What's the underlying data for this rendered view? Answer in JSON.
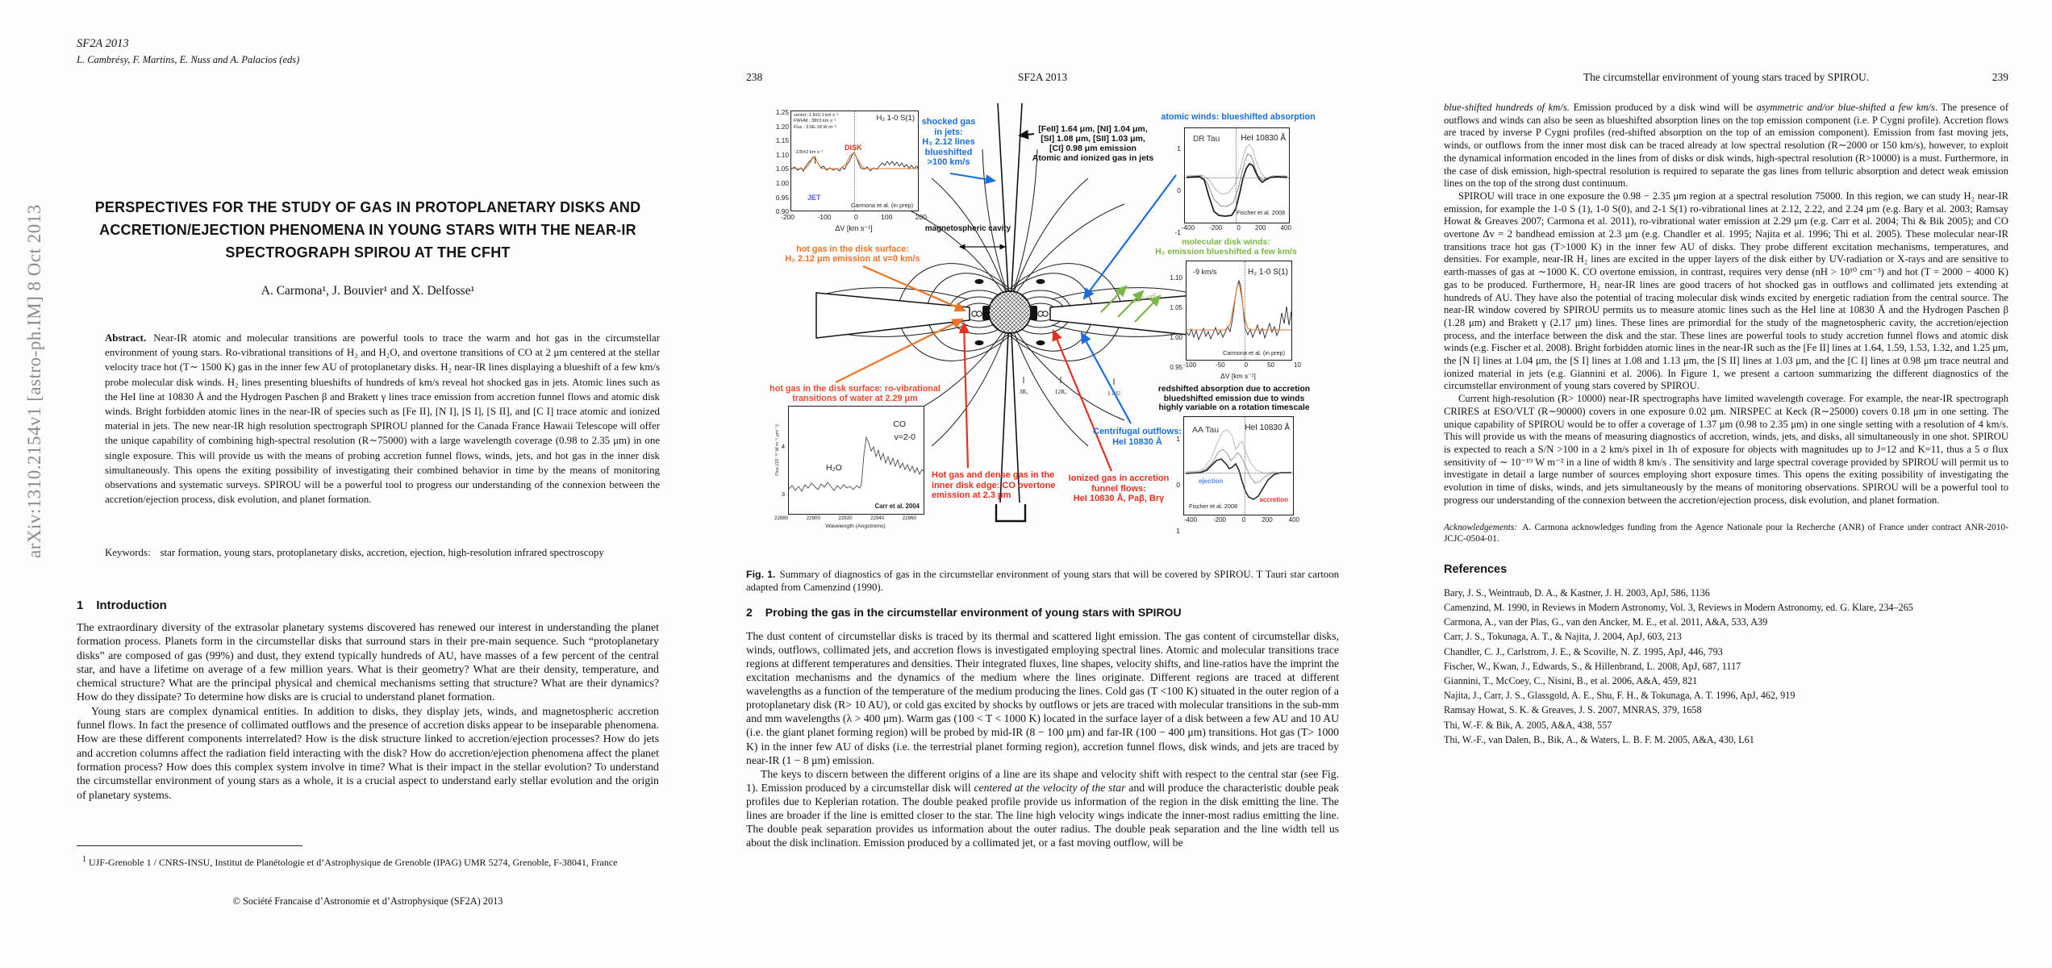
{
  "page1": {
    "arxiv_stamp": "arXiv:1310.2154v1  [astro-ph.IM]  8 Oct 2013",
    "header_line1": "SF2A 2013",
    "header_line2": "L. Cambrésy, F. Martins, E. Nuss and A. Palacios (eds)",
    "title": "PERSPECTIVES FOR THE STUDY OF GAS IN PROTOPLANETARY DISKS AND ACCRETION/EJECTION PHENOMENA IN YOUNG STARS WITH THE NEAR-IR SPECTROGRAPH SPIROU AT THE CFHT",
    "authors": "A. Carmona¹, J. Bouvier¹ and X. Delfosse¹",
    "abstract_label": "Abstract.",
    "abstract": "Near-IR atomic and molecular transitions are powerful tools to trace the warm and hot gas in the circumstellar environment of young stars. Ro-vibrational transitions of H₂ and H₂O, and overtone transitions of CO at 2 μm centered at the stellar velocity trace hot (T∼ 1500 K) gas in the inner few AU of protoplanetary disks. H₂ near-IR lines displaying a blueshift of a few km/s probe molecular disk winds. H₂ lines presenting blueshifts of hundreds of km/s reveal hot shocked gas in jets. Atomic lines such as the HeI line at 10830 Å  and the Hydrogen Paschen β and Brakett γ lines trace emission from accretion funnel flows and atomic disk winds. Bright forbidden atomic lines in the near-IR of species such as [Fe II], [N I], [S I], [S II], and [C I] trace atomic and ionized material in jets. The new near-IR high resolution spectrograph SPIROU planned for the Canada France Hawaii Telescope will offer the unique capability of combining high-spectral resolution (R∼75000) with a large wavelength coverage (0.98 to 2.35 μm) in one single exposure. This will provide us with the means of probing accretion funnel flows, winds, jets, and hot gas in the inner disk simultaneously. This opens the exiting possibility of investigating their combined behavior in time by the means of monitoring observations and systematic surveys. SPIROU will be a powerful tool to progress our understanding of the connexion between the accretion/ejection process, disk evolution, and planet formation.",
    "keywords_label": "Keywords:",
    "keywords": "star formation, young stars, protoplanetary disks, accretion, ejection, high-resolution infrared spectroscopy",
    "section1_num": "1",
    "section1_text": "Introduction",
    "intro_p1": "The extraordinary diversity of the extrasolar planetary systems discovered has renewed our interest in understanding the planet formation process. Planets form in the circumstellar disks that surround stars in their pre-main sequence. Such “protoplanetary disks” are composed of gas (99%) and dust, they extend typically hundreds of AU, have masses of a few percent of the central star, and have a lifetime on average of a few million years. What is their geometry? What are their density, temperature, and chemical structure? What are the principal physical and chemical mechanisms setting that structure? What are their dynamics? How do they dissipate? To determine how disks are is crucial to understand planet formation.",
    "intro_p2": "Young stars are complex dynamical entities. In addition to disks, they display jets, winds, and magnetospheric accretion funnel flows. In fact the presence of collimated outflows and the presence of accretion disks appear to be inseparable phenomena. How are these different components interrelated? How is the disk structure linked to accretion/ejection processes? How do jets and accretion columns affect the radiation field interacting with the disk? How do accretion/ejection phenomena affect the planet formation process? How does this complex system involve in time? What is their impact in the stellar evolution? To understand the circumstellar environment of young stars as a whole, it is a crucial aspect to understand early stellar evolution and the origin of planetary systems.",
    "footnote_marker": "1",
    "footnote": "UJF-Grenoble 1 / CNRS-INSU, Institut de Planétologie et d’Astrophysique de Grenoble (IPAG) UMR 5274, Grenoble, F-38041, France",
    "copyright": "© Société Francaise d’Astronomie et d’Astrophysique (SF2A) 2013"
  },
  "page2": {
    "page_number": "238",
    "running_head": "SF2A 2013",
    "figure": {
      "inset_jet": {
        "stats": [
          "center:-1.8±2.1 km s⁻¹",
          "FWHM :  38±3 km s⁻¹",
          "Flux  :  3.6E-18 W m⁻²"
        ],
        "title": "H₂ 1-0 S(1)",
        "peak": "-135±2 km s⁻¹",
        "disk": "DISK",
        "jet": "JET",
        "credit": "Carmona et al.  (in prep)",
        "yticks": [
          "1.25",
          "1.20",
          "1.15",
          "1.10",
          "1.05",
          "1.00",
          "0.95",
          "0.90"
        ],
        "xticks": [
          "-200",
          "-100",
          "0",
          "100",
          "200"
        ],
        "xlabel": "ΔV [km s⁻¹]"
      },
      "label_shocked": [
        "shocked gas",
        "in jets:",
        "H₂ 2.12 lines",
        "blueshifted",
        ">100 km/s"
      ],
      "label_jets_atomic": [
        "[FeII] 1.64 μm, [NI] 1.04 μm,",
        "[SI] 1.08 μm, [SII] 1.03 μm,",
        "[CI] 0.98 μm emission",
        "Atomic and ionized gas in jets"
      ],
      "label_cavity": "magnetospheric cavity",
      "label_hot1": [
        "hot gas in the disk surface:",
        "H₂ 2.12 μm emission at v=0 km/s"
      ],
      "label_hot2": [
        "hot gas in the disk surface:  ro-vibrational",
        "transitions of  water at 2.29 μm"
      ],
      "label_dense": [
        "Hot gas and dense gas in the",
        "inner disk edge: CO overtone",
        "emission at 2.3 μm"
      ],
      "label_funnel": [
        "Ionized gas in accretion",
        "funnel flows:",
        "HeI 10830 Å, Paβ, Brγ"
      ],
      "label_centrifugal": [
        "Centrifugal outflows:",
        "HeI 10830 Å"
      ],
      "label_atomic_winds": "atomic winds: blueshifted absorption",
      "label_mol_winds": [
        "molecular disk winds:",
        "H₂ emission blueshifted a few km/s"
      ],
      "label_redshifted": [
        "redshifted absorption due to accretion",
        "bluedshifted emission due to winds",
        "highly variable on a rotation timescale"
      ],
      "cartoon": {
        "r1": "3Rₒ",
        "r2": "12Rₒ",
        "au": "1 AU",
        "wind": "ionized wind"
      },
      "inset_drtau": {
        "star": "DR Tau",
        "line": "HeI 10830 Å",
        "credit": "Fischer et al. 2008",
        "yticks": [
          "1",
          "0",
          "-1"
        ],
        "xticks": [
          "-400",
          "-200",
          "0",
          "200",
          "400"
        ]
      },
      "inset_mol": {
        "shift": "-9 km/s",
        "title": "H₂ 1-0 S(1)",
        "credit": "Carmona et al.  (in prep)",
        "yticks": [
          "1.10",
          "1.05",
          "1.00",
          "0.95"
        ],
        "xticks": [
          "-100",
          "-50",
          "0",
          "50",
          "10"
        ],
        "xlabel": "ΔV [km s⁻¹]"
      },
      "inset_aatau": {
        "star": "AA Tau",
        "line": "HeI 10830 Å",
        "ejection": "ejection",
        "accretion": "accretion",
        "credit": "Fischer et al. 2008",
        "yticks": [
          "1",
          "0",
          "1"
        ],
        "xticks": [
          "-400",
          "-200",
          "0",
          "200",
          "400"
        ]
      },
      "inset_co": {
        "co": "CO",
        "band": "v=2-0",
        "h2o": "H₂O",
        "credit": "Carr et al. 2004",
        "ylabel": "Flux (10⁻¹⁸ W m⁻² μm⁻¹)",
        "yticks": [
          "4",
          "3"
        ],
        "xticks": [
          "22880",
          "22900",
          "22920",
          "22940",
          "22960"
        ],
        "xlabel": "Wavelength (Angstroms)"
      }
    },
    "caption_label": "Fig. 1.",
    "caption": "Summary of diagnostics of gas in the circumstellar environment of young stars that will be covered by SPI­ROU. T Tauri star cartoon adapted from Camenzind (1990).",
    "section2_num": "2",
    "section2_text": "Probing the gas in the circumstellar environment of young stars with SPIROU",
    "p1": "The dust content of circumstellar disks is traced by its thermal and scattered light emission. The gas content of circumstellar disks, winds, outflows, collimated jets, and accretion flows is investigated employing spectral lines. Atomic and molecular transitions trace regions at different temperatures and densities. Their integrated fluxes, line shapes, velocity shifts, and line-ratios have the imprint the excitation mechanisms and the dynamics of the medium where the lines originate. Different regions are traced at different wavelengths as a function of the temperature of the medium producing the lines. Cold gas (T <100 K) situated in the outer region of a protoplanetary disk (R> 10 AU), or cold gas excited by shocks by outflows or jets are traced with molecular transitions in the sub-mm and mm wavelengths (λ > 400 μm). Warm gas (100 < T < 1000 K) located in the surface layer of a disk between a few AU and 10 AU (i.e. the giant planet forming region) will be probed by mid-IR (8 − 100 μm) and far-IR (100 − 400 μm) transitions. Hot gas (T> 1000 K) in the inner few AU of disks (i.e. the terrestrial planet forming region), accretion funnel flows, disk winds, and jets are traced by near-IR (1 − 8 μm) emission.",
    "p2_spans": [
      {
        "t": "The keys to discern between the different origins of a line are its shape and velocity shift with respect to the central star (see Fig. 1). Emission produced by a circumstellar disk will "
      },
      {
        "t": "centered at the velocity of the star",
        "i": true
      },
      {
        "t": " and will produce the characteristic double peak profiles due to Keplerian rotation. The double peaked profile provide us information of the region in the disk emitting the line. The lines are broader if the line is emitted closer to the star. The line high velocity wings indicate the inner-most radius emitting the line. The double peak separation provides us information about the outer radius. The double peak separation and the line width tell us about the disk inclination. Emission produced by a collimated jet, or a fast moving outflow, will be"
      }
    ]
  },
  "page3": {
    "running_head": "The circumstellar environment of young stars traced by SPIROU.",
    "page_number": "239",
    "p1_spans": [
      {
        "t": "blue-shifted hundreds of km/s.",
        "i": true
      },
      {
        "t": " Emission produced by a disk wind will be "
      },
      {
        "t": "asymmetric and/or blue-shifted a few km/s",
        "i": true
      },
      {
        "t": ". The presence of outflows and winds can also be seen as blueshifted absorption lines on the top emission component (i.e. P Cygni profile). Accretion flows are traced by inverse P Cygni profiles (red-shifted absorption on the top of an emission component). Emission from fast moving jets, winds, or outflows from the inner most disk can be traced already at low spectral resolution (R∼2000 or 150 km/s), however, to exploit the dynamical information encoded in the lines from of disks or disk winds, high-spectral resolution (R>10000) is a must. Furthermore, in the case of disk emission, high-spectral resolution is required to separate the gas lines from telluric absorption and detect weak emission lines on the top of the strong dust continuum."
      }
    ],
    "p2": "SPIROU will trace in one exposure the 0.98 − 2.35 μm region at a spectral resolution 75000. In this region, we can study H₂ near-IR emission, for example the 1-0 S (1), 1-0 S(0), and 2-1 S(1) ro-vibrational lines at 2.12, 2.22, and 2.24 μm (e.g. Bary et al. 2003; Ramsay Howat & Greaves 2007; Carmona et al. 2011), ro-vibrational water emission at 2.29 μm (e.g. Carr et al. 2004; Thi & Bik 2005); and CO overtone Δv = 2 bandhead emission at 2.3 μm (e.g. Chandler et al. 1995; Najita et al. 1996; Thi et al. 2005). These molecular near-IR transitions trace hot gas (T>1000 K) in the inner few AU of disks. They probe different excitation mechanisms, temperatures, and densities. For example, near-IR H₂ lines are excited in the upper layers of the disk either by UV-radiation or X-rays and are sensitive to earth-masses of gas at ∼1000 K. CO overtone emission, in contrast, requires very dense (nH > 10¹⁰ cm⁻³) and hot (T = 2000 − 4000 K) gas to be produced. Furthermore, H₂ near-IR lines are good tracers of hot shocked gas in outflows and collimated jets extending at hundreds of AU. They have also the potential of tracing molecular disk winds excited by energetic radiation from the central source. The near-IR window covered by SPIROU permits us to measure atomic lines such as the HeI line at 10830 Å  and the Hydrogen Paschen β (1.28 μm) and Brakett γ (2.17 μm) lines. These lines are primordial for the study of the magnetospheric cavity, the accretion/ejection process, and the interface between the disk and the star. These lines are powerful tools to study accretion funnel flows and atomic disk winds (e.g. Fischer et al. 2008). Bright forbidden atomic lines in the near-IR such as the [Fe II] lines at 1.64, 1.59, 1.53, 1.32, and 1.25 μm, the [N I] lines at 1.04 μm, the [S I] lines at 1.08 and 1.13 μm, the [S II] lines at 1.03 μm, and the [C I] lines at 0.98 μm trace neutral and ionized material in jets (e.g. Giannini et al. 2006). In Figure 1, we present a cartoon summarizing the different diagnostics of the circumstellar environment of young stars covered by SPIROU.",
    "p3": "Current high-resolution (R> 10000) near-IR spectrographs have limited wavelength coverage. For example, the near-IR spectrograph CRIRES at ESO/VLT (R∼90000) covers in one exposure 0.02 μm. NIRSPEC at Keck (R∼25000) covers 0.18 μm in one setting. The unique capability of SPIROU would be to offer a coverage of 1.37 μm (0.98 to 2.35 μm) in one single setting with a resolution of 4 km/s. This will provide us with the means of measuring diagnostics of accretion, winds, jets, and disks, all simultaneously in one shot. SPIROU is expected to reach a S/N >100 in a 2 km/s pixel in 1h of exposure for objects with magnitudes up to J=12 and K=11, thus a 5 σ flux sensitivity of ∼ 10⁻¹⁹ W m⁻² in a line of width 8 km/s . The sensitivity and large spectral coverage provided by SPIROU will permit us to investigate in detail a large number of sources employing short exposure times. This opens the exiting possibility of investigating the evolution in time of disks, winds, and jets simultaneously by the means of monitoring observations. SPIROU will be a powerful tool to progress our understanding of the connexion between the accretion/ejection process, disk evolution, and planet formation.",
    "ack_label": "Acknowledgements:",
    "ack": "A. Carmona acknowledges funding from the Agence Nationale pour la Recherche (ANR) of France under contract ANR-2010-JCJC-0504-01.",
    "references_heading": "References",
    "references": [
      "Bary, J. S., Weintraub, D. A., & Kastner, J. H. 2003, ApJ, 586, 1136",
      "Camenzind, M. 1990, in Reviews in Modern Astronomy, Vol. 3, Reviews in Modern Astronomy, ed. G. Klare, 234–265",
      "Carmona, A., van der Plas, G., van den Ancker, M. E., et al. 2011, A&A, 533, A39",
      "Carr, J. S., Tokunaga, A. T., & Najita, J. 2004, ApJ, 603, 213",
      "Chandler, C. J., Carlstrom, J. E., & Scoville, N. Z. 1995, ApJ, 446, 793",
      "Fischer, W., Kwan, J., Edwards, S., & Hillenbrand, L. 2008, ApJ, 687, 1117",
      "Giannini, T., McCoey, C., Nisini, B., et al. 2006, A&A, 459, 821",
      "Najita, J., Carr, J. S., Glassgold, A. E., Shu, F. H., & Tokunaga, A. T. 1996, ApJ, 462, 919",
      "Ramsay Howat, S. K. & Greaves, J. S. 2007, MNRAS, 379, 1658",
      "Thi, W.-F. & Bik, A. 2005, A&A, 438, 557",
      "Thi, W.-F., van Dalen, B., Bik, A., & Waters, L. B. F. M. 2005, A&A, 430, L61"
    ]
  }
}
